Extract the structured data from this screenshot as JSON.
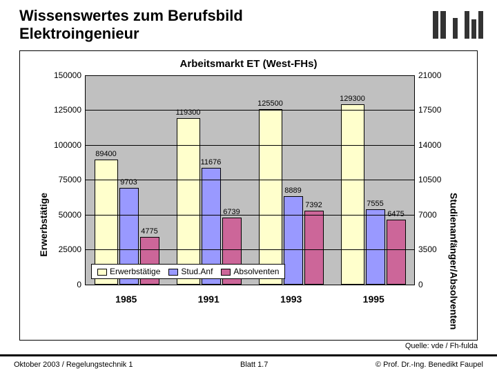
{
  "header": {
    "title_line1": "Wissenswertes zum Berufsbild",
    "title_line2": "Elektroingenieur"
  },
  "chart": {
    "title": "Arbeitsmarkt ET (West-FHs)",
    "type": "grouped-bar-dual-axis",
    "background_color": "#c0c0c0",
    "categories": [
      "1985",
      "1991",
      "1993",
      "1995"
    ],
    "series": [
      {
        "name": "Erwerbstätige",
        "color": "#ffffcc",
        "axis": "left",
        "values": [
          89400,
          119300,
          125500,
          129300
        ]
      },
      {
        "name": "Stud.Anf",
        "color": "#9999ff",
        "axis": "right",
        "values": [
          9703,
          11676,
          8889,
          7555
        ]
      },
      {
        "name": "Absolventen",
        "color": "#cc6699",
        "axis": "right",
        "values": [
          4775,
          6739,
          7392,
          6475
        ]
      }
    ],
    "left_axis": {
      "label": "Erwerbstätige",
      "min": 0,
      "max": 150000,
      "step": 25000
    },
    "right_axis": {
      "label": "Studienanfänger/Absolventen",
      "min": 0,
      "max": 21000,
      "step": 3500
    },
    "legend_labels": [
      "Erwerbstätige",
      "Stud.Anf",
      "Absolventen"
    ],
    "grid_color": "#000000"
  },
  "source": "Quelle: vde / Fh-fulda",
  "footer": {
    "left": "Oktober 2003 / Regelungstechnik 1",
    "center": "Blatt 1.7",
    "right": "© Prof. Dr.-Ing. Benedikt Faupel"
  }
}
